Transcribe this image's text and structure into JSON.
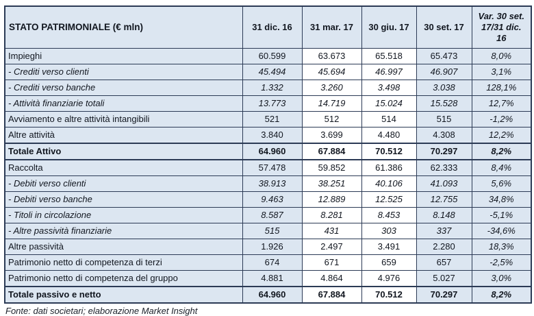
{
  "chart_data": {
    "type": "table",
    "title": "STATO PATRIMONIALE (€ mln)",
    "columns": [
      "31 dic. 16",
      "31 mar. 17",
      "30 giu. 17",
      "30 set. 17",
      "Var. 30 set. 17/31 dic. 16"
    ],
    "rows": [
      {
        "label": "Impieghi",
        "style": "normal",
        "values": [
          "60.599",
          "63.673",
          "65.518",
          "65.473",
          "8,0%"
        ]
      },
      {
        "label": "- Crediti verso clienti",
        "style": "italic",
        "values": [
          "45.494",
          "45.694",
          "46.997",
          "46.907",
          "3,1%"
        ]
      },
      {
        "label": "- Crediti verso banche",
        "style": "italic",
        "values": [
          "1.332",
          "3.260",
          "3.498",
          "3.038",
          "128,1%"
        ]
      },
      {
        "label": "- Attività finanziarie totali",
        "style": "italic",
        "values": [
          "13.773",
          "14.719",
          "15.024",
          "15.528",
          "12,7%"
        ]
      },
      {
        "label": "Avviamento e altre attività intangibili",
        "style": "normal",
        "values": [
          "521",
          "512",
          "514",
          "515",
          "-1,2%"
        ]
      },
      {
        "label": "Altre attività",
        "style": "normal",
        "values": [
          "3.840",
          "3.699",
          "4.480",
          "4.308",
          "12,2%"
        ]
      },
      {
        "label": "Totale Attivo",
        "style": "total",
        "values": [
          "64.960",
          "67.884",
          "70.512",
          "70.297",
          "8,2%"
        ]
      },
      {
        "label": "Raccolta",
        "style": "normal",
        "values": [
          "57.478",
          "59.852",
          "61.386",
          "62.333",
          "8,4%"
        ]
      },
      {
        "label": "- Debiti verso clienti",
        "style": "italic",
        "values": [
          "38.913",
          "38.251",
          "40.106",
          "41.093",
          "5,6%"
        ]
      },
      {
        "label": "- Debiti verso banche",
        "style": "italic",
        "values": [
          "9.463",
          "12.889",
          "12.525",
          "12.755",
          "34,8%"
        ]
      },
      {
        "label": "- Titoli in circolazione",
        "style": "italic",
        "values": [
          "8.587",
          "8.281",
          "8.453",
          "8.148",
          "-5,1%"
        ]
      },
      {
        "label": "- Altre passività finanziarie",
        "style": "italic",
        "values": [
          "515",
          "431",
          "303",
          "337",
          "-34,6%"
        ]
      },
      {
        "label": "Altre passività",
        "style": "normal",
        "values": [
          "1.926",
          "2.497",
          "3.491",
          "2.280",
          "18,3%"
        ]
      },
      {
        "label": "Patrimonio netto di competenza di terzi",
        "style": "normal",
        "values": [
          "674",
          "671",
          "659",
          "657",
          "-2,5%"
        ]
      },
      {
        "label": "Patrimonio netto di competenza del gruppo",
        "style": "normal",
        "values": [
          "4.881",
          "4.864",
          "4.976",
          "5.027",
          "3,0%"
        ]
      },
      {
        "label": "Totale passivo e netto",
        "style": "total",
        "values": [
          "64.960",
          "67.884",
          "70.512",
          "70.297",
          "8,2%"
        ]
      }
    ],
    "footer": "Fonte: dati societari; elaborazione Market Insight",
    "layout_hints": {
      "shaded_value_column_indexes": [
        0,
        3,
        4
      ],
      "percent_column_index": 4
    },
    "colors": {
      "shaded_bg": "#dce6f1",
      "white_bg": "#ffffff",
      "border": "#2b3a55",
      "text": "#11161f"
    }
  }
}
